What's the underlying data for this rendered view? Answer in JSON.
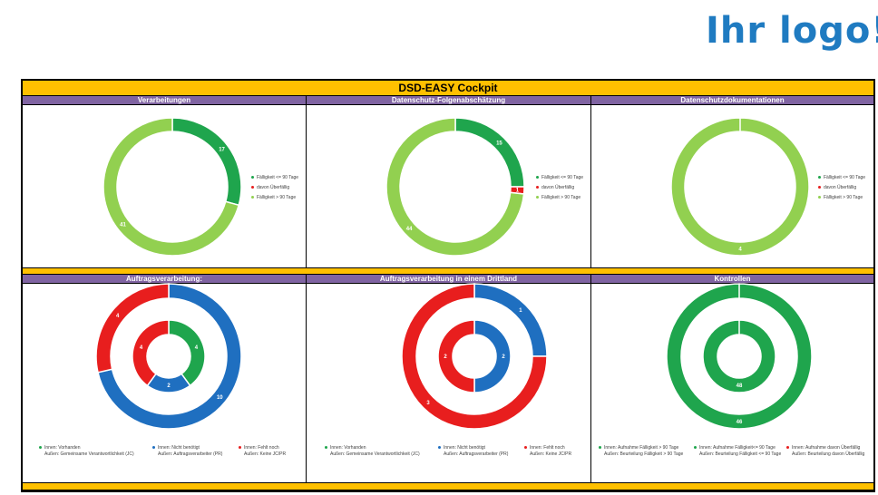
{
  "logo_text": "Ihr logo!",
  "title": "DSD-EASY Cockpit",
  "colors": {
    "yellow": "#ffc000",
    "purple": "#8064a2",
    "dark_green": "#1fa54d",
    "light_green": "#92d050",
    "red": "#e81e1e",
    "blue": "#1f6fc0"
  },
  "panels": [
    {
      "title": "Verarbeitungen",
      "chart_data": {
        "type": "donut",
        "rings": [
          {
            "ring": "single",
            "segments": [
              {
                "name": "Fälligkeit <= 90 Tage",
                "value": 17,
                "color": "#1fa54d"
              },
              {
                "name": "davon Überfällig",
                "value": 0,
                "color": "#e81e1e"
              },
              {
                "name": "Fälligkeit > 90 Tage",
                "value": 41,
                "color": "#92d050"
              }
            ]
          }
        ],
        "legend": {
          "placement": "right",
          "items": [
            {
              "label": "Fälligkeit <= 90 Tage",
              "color": "#1fa54d"
            },
            {
              "label": "davon Überfällig",
              "color": "#e81e1e"
            },
            {
              "label": "Fälligkeit > 90 Tage",
              "color": "#92d050"
            }
          ]
        }
      }
    },
    {
      "title": "Datenschutz-Folgenabschätzung",
      "chart_data": {
        "type": "donut",
        "rings": [
          {
            "ring": "single",
            "segments": [
              {
                "name": "Fälligkeit <= 90 Tage",
                "value": 15,
                "color": "#1fa54d"
              },
              {
                "name": "davon Überfällig",
                "value": 1,
                "color": "#e81e1e"
              },
              {
                "name": "Fälligkeit > 90 Tage",
                "value": 44,
                "color": "#92d050"
              }
            ]
          }
        ],
        "legend": {
          "placement": "right",
          "items": [
            {
              "label": "Fälligkeit <= 90 Tage",
              "color": "#1fa54d"
            },
            {
              "label": "davon Überfällig",
              "color": "#e81e1e"
            },
            {
              "label": "Fälligkeit > 90 Tage",
              "color": "#92d050"
            }
          ]
        }
      }
    },
    {
      "title": "Datenschutzdokumentationen",
      "chart_data": {
        "type": "donut",
        "rings": [
          {
            "ring": "single",
            "segments": [
              {
                "name": "Fälligkeit <= 90 Tage",
                "value": 0,
                "color": "#1fa54d"
              },
              {
                "name": "davon Überfällig",
                "value": 0,
                "color": "#e81e1e"
              },
              {
                "name": "Fälligkeit > 90 Tage",
                "value": 4,
                "color": "#92d050"
              }
            ]
          }
        ],
        "legend": {
          "placement": "right",
          "items": [
            {
              "label": "Fälligkeit <= 90 Tage",
              "color": "#1fa54d"
            },
            {
              "label": "davon Überfällig",
              "color": "#e81e1e"
            },
            {
              "label": "Fälligkeit > 90 Tage",
              "color": "#92d050"
            }
          ]
        }
      }
    },
    {
      "title": "Auftragsverarbeitung:",
      "chart_data": {
        "type": "donut",
        "rings": [
          {
            "ring": "outer",
            "segments": [
              {
                "name": "Außen: Gemeinsame Verantwortlichkeit (JC)",
                "value": 0,
                "color": "#1fa54d"
              },
              {
                "name": "Außen: Auftragsverarbeiter (PR)",
                "value": 10,
                "color": "#1f6fc0"
              },
              {
                "name": "Außen: Keine JC/PR",
                "value": 4,
                "color": "#e81e1e"
              }
            ]
          },
          {
            "ring": "inner",
            "segments": [
              {
                "name": "Innen: Vorhanden",
                "value": 4,
                "color": "#1fa54d"
              },
              {
                "name": "Innen: Nicht benötigt",
                "value": 2,
                "color": "#1f6fc0"
              },
              {
                "name": "Innen: Fehlt noch",
                "value": 4,
                "color": "#e81e1e"
              }
            ]
          }
        ],
        "legend": {
          "placement": "bottom",
          "items": [
            {
              "line1": "Innen: Vorhanden",
              "line2": "Außen: Gemeinsame Verantwortlichkeit (JC)",
              "color": "#1fa54d"
            },
            {
              "line1": "Innen: Nicht benötigt",
              "line2": "Außen: Auftragsverarbeiter (PR)",
              "color": "#1f6fc0"
            },
            {
              "line1": "Innen: Fehlt noch",
              "line2": "Außen: Keine JC/PR",
              "color": "#e81e1e"
            }
          ]
        }
      }
    },
    {
      "title": "Auftragsverarbeitung in einem Drittland",
      "chart_data": {
        "type": "donut",
        "rings": [
          {
            "ring": "outer",
            "segments": [
              {
                "name": "Außen: Gemeinsame Verantwortlichkeit (JC)",
                "value": 0,
                "color": "#1fa54d"
              },
              {
                "name": "Außen: Auftragsverarbeiter (PR)",
                "value": 1,
                "color": "#1f6fc0"
              },
              {
                "name": "Außen: Keine JC/PR",
                "value": 3,
                "color": "#e81e1e"
              }
            ]
          },
          {
            "ring": "inner",
            "segments": [
              {
                "name": "Innen: Vorhanden",
                "value": 0,
                "color": "#1fa54d"
              },
              {
                "name": "Innen: Nicht benötigt",
                "value": 2,
                "color": "#1f6fc0"
              },
              {
                "name": "Innen: Fehlt noch",
                "value": 2,
                "color": "#e81e1e"
              }
            ]
          }
        ],
        "legend": {
          "placement": "bottom",
          "items": [
            {
              "line1": "Innen: Vorhanden",
              "line2": "Außen: Gemeinsame Verantwortlichkeit (JC)",
              "color": "#1fa54d"
            },
            {
              "line1": "Innen: Nicht benötigt",
              "line2": "Außen: Auftragsverarbeiter (PR)",
              "color": "#1f6fc0"
            },
            {
              "line1": "Innen: Fehlt noch",
              "line2": "Außen: Keine JC/PR",
              "color": "#e81e1e"
            }
          ]
        }
      }
    },
    {
      "title": "Kontrollen",
      "chart_data": {
        "type": "donut",
        "rings": [
          {
            "ring": "outer",
            "segments": [
              {
                "name": "Außen: Beurteilung Fälligkeit > 90 Tage",
                "value": 46,
                "color": "#1fa54d"
              },
              {
                "name": "Außen: Beurteilung Fälligkeit <= 90 Tage",
                "value": 0,
                "color": "#1fa54d"
              },
              {
                "name": "Außen: Beurteilung davon Überfällig",
                "value": 0,
                "color": "#e81e1e"
              }
            ]
          },
          {
            "ring": "inner",
            "segments": [
              {
                "name": "Innen: Aufnahme Fälligkeit > 90 Tage",
                "value": 48,
                "color": "#1fa54d"
              },
              {
                "name": "Innen: Aufnahme Fälligkeit<= 90 Tage",
                "value": 0,
                "color": "#1fa54d"
              },
              {
                "name": "Innen: Aufnahme davon Überfällig",
                "value": 0,
                "color": "#e81e1e"
              }
            ]
          }
        ],
        "legend": {
          "placement": "bottom",
          "items": [
            {
              "line1": "Innen: Aufnahme Fälligkeit > 90 Tage",
              "line2": "Außen: Beurteilung Fälligkeit > 90 Tage",
              "color": "#1fa54d"
            },
            {
              "line1": "Innen: Aufnahme Fälligkeit<= 90 Tage",
              "line2": "Außen: Beurteilung Fälligkeit <= 90 Tage",
              "color": "#1fa54d"
            },
            {
              "line1": "Innen: Aufnahme davon Überfällig",
              "line2": "Außen: Beurteilung davon Überfällig",
              "color": "#e81e1e"
            }
          ]
        }
      }
    }
  ]
}
